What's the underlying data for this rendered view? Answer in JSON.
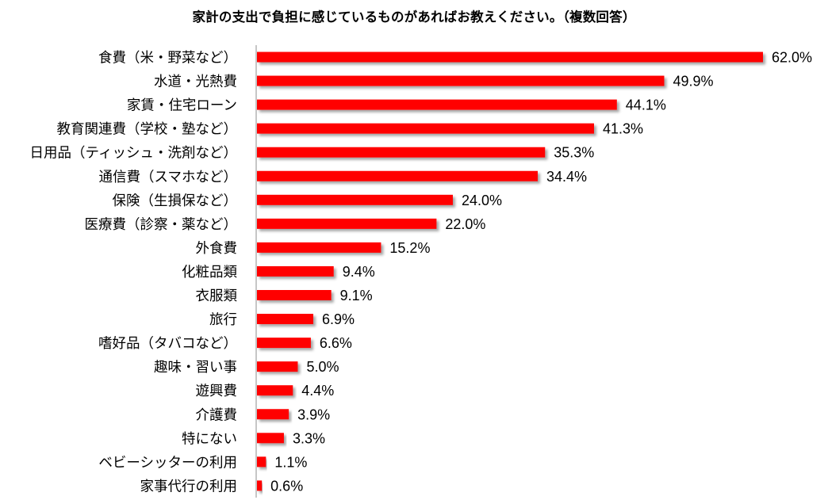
{
  "chart_data": {
    "type": "bar",
    "orientation": "horizontal",
    "title": "家計の支出で負担に感じているものがあればお教えください。（複数回答）",
    "categories": [
      "食費（米・野菜など）",
      "水道・光熱費",
      "家賃・住宅ローン",
      "教育関連費（学校・塾など）",
      "日用品（ティッシュ・洗剤など）",
      "通信費（スマホなど）",
      "保険（生損保など）",
      "医療費（診察・薬など）",
      "外食費",
      "化粧品類",
      "衣服類",
      "旅行",
      "嗜好品（タバコなど）",
      "趣味・習い事",
      "遊興費",
      "介護費",
      "特にない",
      "ベビーシッターの利用",
      "家事代行の利用"
    ],
    "values": [
      62.0,
      49.9,
      44.1,
      41.3,
      35.3,
      34.4,
      24.0,
      22.0,
      15.2,
      9.4,
      9.1,
      6.9,
      6.6,
      5.0,
      4.4,
      3.9,
      3.3,
      1.1,
      0.6
    ],
    "value_labels": [
      "62.0%",
      "49.9%",
      "44.1%",
      "41.3%",
      "35.3%",
      "34.4%",
      "24.0%",
      "22.0%",
      "15.2%",
      "9.4%",
      "9.1%",
      "6.9%",
      "6.6%",
      "5.0%",
      "4.4%",
      "3.9%",
      "3.3%",
      "1.1%",
      "0.6%"
    ],
    "unit": "%",
    "bar_color": "#ff0000",
    "grid": false,
    "legend": "none"
  }
}
